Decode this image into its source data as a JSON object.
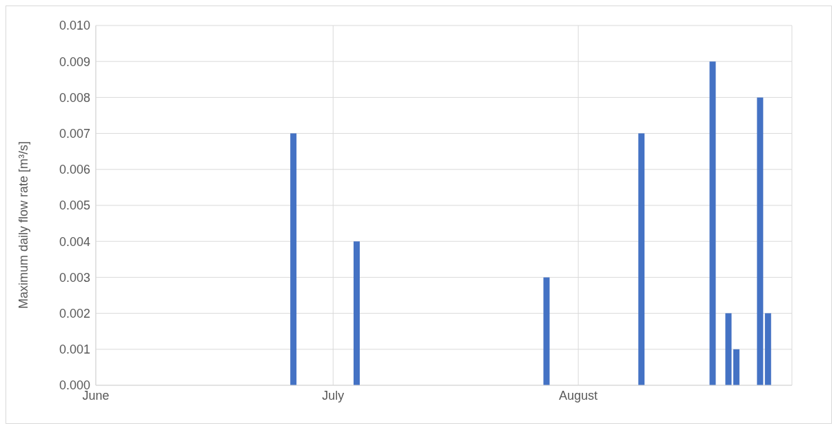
{
  "chart_data": {
    "type": "bar",
    "ylabel": "Maximum daily flow rate [m³/s]",
    "x": [
      "--06-26",
      "--07-04",
      "--07-28",
      "--08-09",
      "--08-18",
      "--08-20",
      "--08-21",
      "--08-24",
      "--08-25"
    ],
    "values": [
      0.007,
      0.004,
      0.003,
      0.007,
      0.009,
      0.002,
      0.001,
      0.008,
      0.002
    ],
    "color": "#4472c4",
    "xlim": [
      "--06-01",
      "--08-28"
    ],
    "xticks": [
      {
        "value": "--06-01",
        "label": "June"
      },
      {
        "value": "--07-01",
        "label": "July"
      },
      {
        "value": "--08-01",
        "label": "August"
      }
    ],
    "ylim": [
      0,
      0.01
    ],
    "yticks": [
      {
        "value": 0,
        "label": "0.000"
      },
      {
        "value": 0.001,
        "label": "0.001"
      },
      {
        "value": 0.002,
        "label": "0.002"
      },
      {
        "value": 0.003,
        "label": "0.003"
      },
      {
        "value": 0.004,
        "label": "0.004"
      },
      {
        "value": 0.005,
        "label": "0.005"
      },
      {
        "value": 0.006,
        "label": "0.006"
      },
      {
        "value": 0.007,
        "label": "0.007"
      },
      {
        "value": 0.008,
        "label": "0.008"
      },
      {
        "value": 0.009,
        "label": "0.009"
      },
      {
        "value": 0.01,
        "label": "0.010"
      }
    ],
    "grid": true
  }
}
